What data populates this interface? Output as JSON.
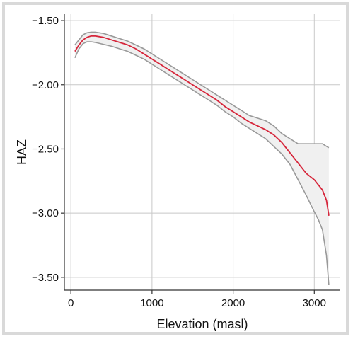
{
  "chart_data": {
    "type": "line",
    "title": "",
    "xlabel": "Elevation (masl)",
    "ylabel": "HAZ",
    "xlim": [
      -80,
      3320
    ],
    "ylim": [
      -3.6,
      -1.45
    ],
    "xticks": [
      0,
      1000,
      2000,
      3000
    ],
    "xtick_labels": [
      "0",
      "1000",
      "2000",
      "3000"
    ],
    "yticks": [
      -1.5,
      -2.0,
      -2.5,
      -3.0,
      -3.5
    ],
    "ytick_labels": [
      "−1.50",
      "−2.00",
      "−2.50",
      "−3.00",
      "−3.50"
    ],
    "grid": true,
    "series": [
      {
        "role": "fit",
        "color": "#d6263b",
        "x": [
          50,
          100,
          150,
          200,
          250,
          300,
          400,
          500,
          600,
          700,
          800,
          900,
          1000,
          1100,
          1200,
          1300,
          1400,
          1500,
          1600,
          1700,
          1800,
          1900,
          2000,
          2100,
          2200,
          2300,
          2400,
          2500,
          2600,
          2700,
          2800,
          2900,
          3000,
          3100,
          3150,
          3180
        ],
        "y": [
          -1.74,
          -1.69,
          -1.65,
          -1.63,
          -1.62,
          -1.62,
          -1.63,
          -1.65,
          -1.67,
          -1.69,
          -1.72,
          -1.76,
          -1.8,
          -1.84,
          -1.88,
          -1.92,
          -1.96,
          -2.0,
          -2.04,
          -2.08,
          -2.12,
          -2.17,
          -2.21,
          -2.25,
          -2.29,
          -2.32,
          -2.35,
          -2.39,
          -2.45,
          -2.53,
          -2.61,
          -2.69,
          -2.74,
          -2.82,
          -2.9,
          -3.02
        ]
      },
      {
        "role": "ci-upper",
        "color": "#999999",
        "x": [
          50,
          100,
          150,
          200,
          250,
          300,
          400,
          500,
          600,
          700,
          800,
          900,
          1000,
          1100,
          1200,
          1300,
          1400,
          1500,
          1600,
          1700,
          1800,
          1900,
          2000,
          2100,
          2200,
          2300,
          2400,
          2500,
          2600,
          2700,
          2800,
          2900,
          3000,
          3100,
          3150,
          3180
        ],
        "y": [
          -1.69,
          -1.65,
          -1.61,
          -1.595,
          -1.59,
          -1.59,
          -1.6,
          -1.62,
          -1.64,
          -1.66,
          -1.69,
          -1.72,
          -1.76,
          -1.8,
          -1.84,
          -1.88,
          -1.92,
          -1.96,
          -2.0,
          -2.04,
          -2.08,
          -2.12,
          -2.16,
          -2.2,
          -2.24,
          -2.26,
          -2.28,
          -2.32,
          -2.38,
          -2.42,
          -2.46,
          -2.46,
          -2.46,
          -2.46,
          -2.48,
          -2.49
        ]
      },
      {
        "role": "ci-lower",
        "color": "#999999",
        "x": [
          50,
          100,
          150,
          200,
          250,
          300,
          400,
          500,
          600,
          700,
          800,
          900,
          1000,
          1100,
          1200,
          1300,
          1400,
          1500,
          1600,
          1700,
          1800,
          1900,
          2000,
          2100,
          2200,
          2300,
          2400,
          2500,
          2600,
          2700,
          2800,
          2900,
          3000,
          3050,
          3100,
          3150,
          3180
        ],
        "y": [
          -1.79,
          -1.72,
          -1.68,
          -1.665,
          -1.665,
          -1.67,
          -1.685,
          -1.7,
          -1.72,
          -1.74,
          -1.77,
          -1.8,
          -1.84,
          -1.88,
          -1.92,
          -1.96,
          -2.0,
          -2.04,
          -2.08,
          -2.12,
          -2.16,
          -2.21,
          -2.25,
          -2.3,
          -2.34,
          -2.38,
          -2.42,
          -2.48,
          -2.54,
          -2.62,
          -2.74,
          -2.86,
          -2.99,
          -3.05,
          -3.13,
          -3.33,
          -3.56
        ]
      }
    ],
    "band_fill": "#f0f0f0"
  }
}
